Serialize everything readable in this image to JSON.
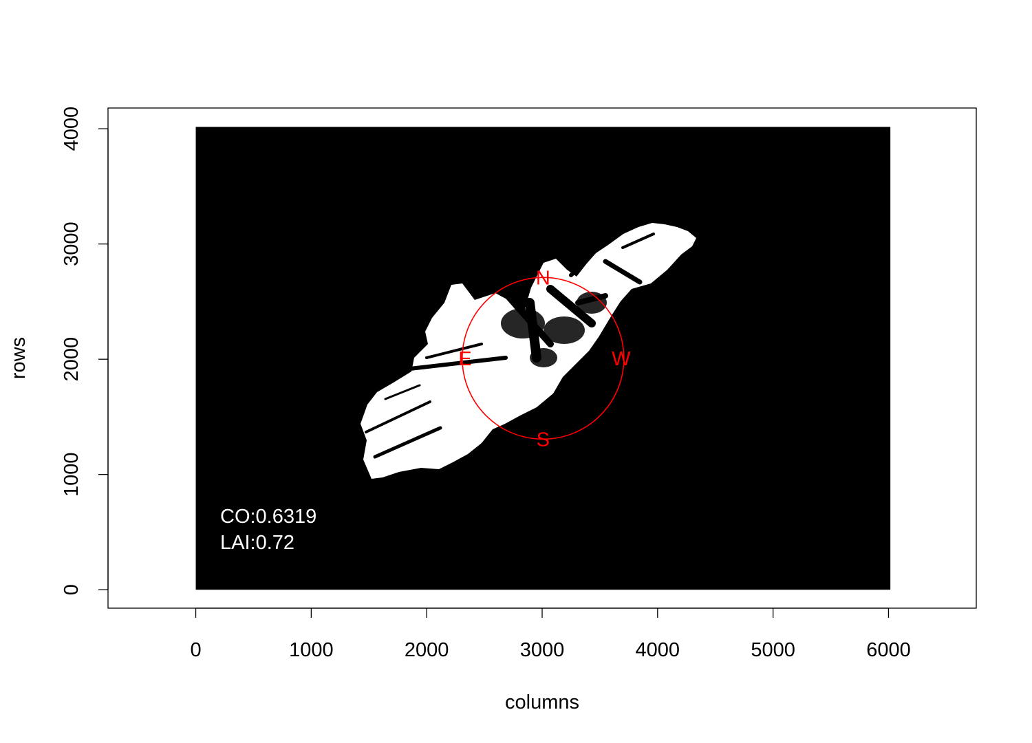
{
  "chart_data": {
    "type": "image",
    "xlabel": "columns",
    "ylabel": "rows",
    "xlim": [
      -760,
      6760
    ],
    "ylim": [
      -160,
      4180
    ],
    "x_ticks": [
      0,
      1000,
      2000,
      3000,
      4000,
      5000,
      6000
    ],
    "y_ticks": [
      0,
      1000,
      2000,
      3000,
      4000
    ],
    "image_extent": {
      "x": [
        0,
        6016
      ],
      "y": [
        0,
        4016
      ]
    },
    "annotations": [
      "CO:0.6319",
      "LAI:0.72"
    ],
    "compass": {
      "center": [
        3008,
        2008
      ],
      "radius_cols": 700,
      "labels": {
        "north": "N",
        "south": "S",
        "east": "E",
        "west": "W"
      },
      "color": "#ff0000"
    },
    "colors": {
      "sky": "#ffffff",
      "canopy": "#000000",
      "compass": "#ff0000"
    }
  }
}
